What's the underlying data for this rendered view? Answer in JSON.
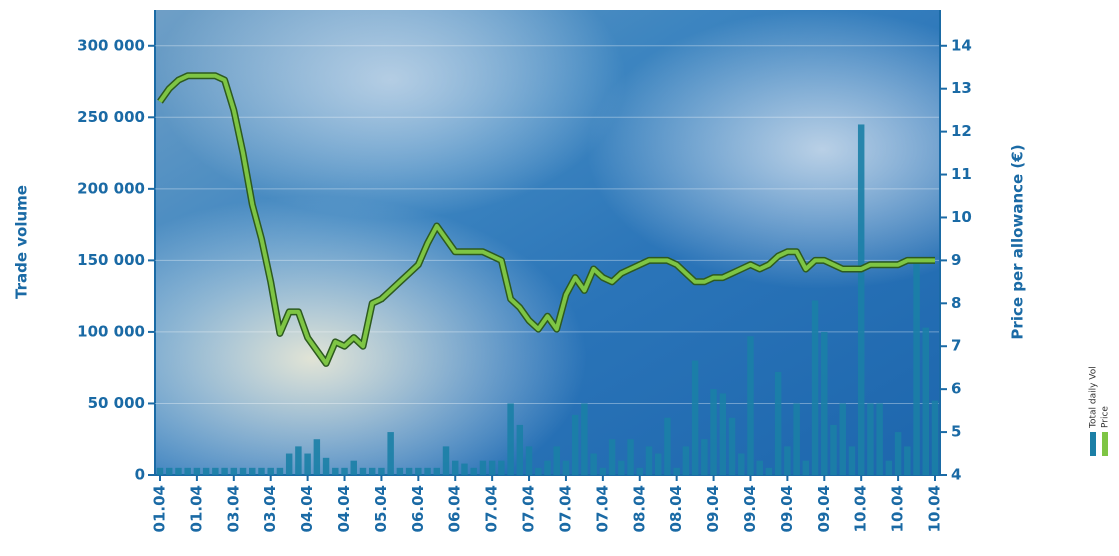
{
  "chart_data": {
    "type": "combo",
    "y_label": "Trade volume",
    "y2_label": "Price per allowance (€)",
    "categories": [
      "01.04",
      null,
      null,
      null,
      "01.04",
      null,
      null,
      null,
      "03.04",
      null,
      null,
      null,
      "03.04",
      null,
      null,
      null,
      "04.04",
      null,
      null,
      null,
      "04.04",
      null,
      null,
      null,
      "05.04",
      null,
      null,
      null,
      "06.04",
      null,
      null,
      null,
      "06.04",
      null,
      null,
      null,
      "07.04",
      null,
      null,
      null,
      "07.04",
      null,
      null,
      null,
      "07.04",
      null,
      null,
      null,
      "07.04",
      null,
      null,
      null,
      "08.04",
      null,
      null,
      null,
      "08.04",
      null,
      null,
      null,
      "09.04",
      null,
      null,
      null,
      "09.04",
      null,
      null,
      null,
      "09.04",
      null,
      null,
      null,
      "09.04",
      null,
      null,
      null,
      "10.04",
      null,
      null,
      null,
      "10.04",
      null,
      null,
      null,
      "10.04"
    ],
    "series": [
      {
        "name": "Total daily Vol",
        "type": "bar",
        "color": "#1b7fa6",
        "values": [
          5000,
          5000,
          5000,
          5000,
          5000,
          5000,
          5000,
          5000,
          5000,
          5000,
          5000,
          5000,
          5000,
          5000,
          15000,
          20000,
          15000,
          25000,
          12000,
          5000,
          5000,
          10000,
          5000,
          5000,
          5000,
          30000,
          5000,
          5000,
          5000,
          5000,
          5000,
          20000,
          10000,
          8000,
          5000,
          10000,
          10000,
          10000,
          50000,
          35000,
          20000,
          5000,
          10000,
          20000,
          10000,
          42000,
          50000,
          15000,
          5000,
          25000,
          10000,
          25000,
          5000,
          20000,
          15000,
          40000,
          5000,
          20000,
          80000,
          25000,
          60000,
          57000,
          40000,
          15000,
          97000,
          10000,
          5000,
          72000,
          20000,
          50000,
          10000,
          122000,
          100000,
          35000,
          50000,
          20000,
          245000,
          50000,
          50000,
          10000,
          30000,
          20000,
          150000,
          103000,
          52000
        ]
      },
      {
        "name": "Price",
        "type": "line",
        "axis": "y2",
        "color": "#7ec544",
        "values": [
          12.7,
          13.0,
          13.2,
          13.3,
          13.3,
          13.3,
          13.3,
          13.2,
          12.5,
          11.5,
          10.3,
          9.5,
          8.5,
          7.3,
          7.8,
          7.8,
          7.2,
          6.9,
          6.6,
          7.1,
          7.0,
          7.2,
          7.0,
          8.0,
          8.1,
          8.3,
          8.5,
          8.7,
          8.9,
          9.4,
          9.8,
          9.5,
          9.2,
          9.2,
          9.2,
          9.2,
          9.1,
          9.0,
          8.1,
          7.9,
          7.6,
          7.4,
          7.7,
          7.4,
          8.2,
          8.6,
          8.3,
          8.8,
          8.6,
          8.5,
          8.7,
          8.8,
          8.9,
          9.0,
          9.0,
          9.0,
          8.9,
          8.7,
          8.5,
          8.5,
          8.6,
          8.6,
          8.7,
          8.8,
          8.9,
          8.8,
          8.9,
          9.1,
          9.2,
          9.2,
          8.8,
          9.0,
          9.0,
          8.9,
          8.8,
          8.8,
          8.8,
          8.9,
          8.9,
          8.9,
          8.9,
          9.0,
          9.0,
          9.0,
          9.0
        ]
      }
    ],
    "ylim": [
      0,
      325000
    ],
    "yticks": [
      0,
      {
        "value": 50000,
        "label": "50 000"
      },
      {
        "value": 100000,
        "label": "100 000"
      },
      {
        "value": 150000,
        "label": "150 000"
      },
      {
        "value": 200000,
        "label": "200 000"
      },
      {
        "value": 250000,
        "label": "250 000"
      },
      {
        "value": 300000,
        "label": "300 000"
      }
    ],
    "y2lim": [
      4,
      14.8333
    ],
    "y2ticks": [
      4,
      5,
      6,
      7,
      8,
      9,
      10,
      11,
      12,
      13,
      14
    ],
    "grid": true,
    "legend": "right"
  }
}
